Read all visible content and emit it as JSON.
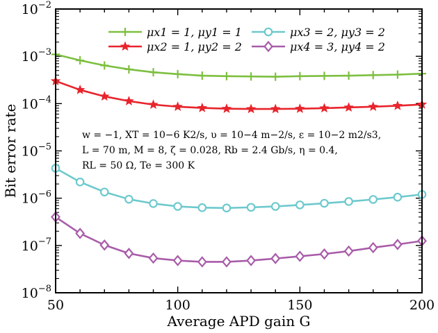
{
  "chart_data": {
    "type": "line",
    "title": "",
    "xlabel": "Average APD gain G",
    "ylabel": "Bit error rate",
    "xlim": [
      50,
      200
    ],
    "ylim": [
      1e-08,
      0.01
    ],
    "yscale": "log",
    "x_ticks": [
      50,
      100,
      150,
      200
    ],
    "x_tick_labels": [
      "50",
      "100",
      "150",
      "200"
    ],
    "y_tick_exponents": [
      -8,
      -7,
      -6,
      -5,
      -4,
      -3,
      -2
    ],
    "y_tick_labels": [
      "10-8",
      "10-7",
      "10-6",
      "10-5",
      "10-4",
      "10-3",
      "10-2"
    ],
    "grid": false,
    "legend_position": "top",
    "x": [
      50,
      60,
      70,
      80,
      90,
      100,
      110,
      120,
      130,
      140,
      150,
      160,
      170,
      180,
      190,
      200
    ],
    "series": [
      {
        "name": "μx1 = 1, μy1 = 1",
        "color": "#7dbf3f",
        "marker": "plus",
        "values": [
          0.0011,
          0.00082,
          0.00064,
          0.00053,
          0.00046,
          0.00042,
          0.00039,
          0.00038,
          0.000375,
          0.00037,
          0.00038,
          0.000385,
          0.00039,
          0.0004,
          0.00041,
          0.00043
        ]
      },
      {
        "name": "μx2 = 1, μy2 = 2",
        "color": "#e8242c",
        "marker": "star",
        "values": [
          0.0003,
          0.000195,
          0.000142,
          0.000113,
          9.5e-05,
          8.6e-05,
          8.1e-05,
          7.8e-05,
          7.7e-05,
          7.7e-05,
          7.8e-05,
          8e-05,
          8.3e-05,
          8.6e-05,
          9e-05,
          9.6e-05
        ]
      },
      {
        "name": "μx3 = 2, μy3 = 2",
        "color": "#6dc9cd",
        "marker": "circle",
        "values": [
          4.3e-06,
          2.2e-06,
          1.35e-06,
          9.5e-07,
          7.7e-07,
          6.7e-07,
          6.3e-07,
          6.2e-07,
          6.4e-07,
          6.7e-07,
          7.2e-07,
          7.8e-07,
          8.5e-07,
          9.4e-07,
          1.05e-06,
          1.2e-06
        ]
      },
      {
        "name": "μx4 = 3, μy4 = 2",
        "color": "#a85ca8",
        "marker": "diamond",
        "values": [
          4e-07,
          1.8e-07,
          1.02e-07,
          6.8e-08,
          5.4e-08,
          4.8e-08,
          4.5e-08,
          4.5e-08,
          4.8e-08,
          5.3e-08,
          5.9e-08,
          6.6e-08,
          7.6e-08,
          9e-08,
          1.05e-07,
          1.25e-07
        ]
      }
    ],
    "annotations": [
      "w = −1, XT = 10−6 K2/s, υ = 10−4 m−2/s, ε = 10−2 m2/s3,",
      "L = 70 m, M = 8, ζ = 0.028, Rb = 2.4 Gb/s, η = 0.4,",
      "RL = 50 Ω, Te = 300 K"
    ]
  }
}
